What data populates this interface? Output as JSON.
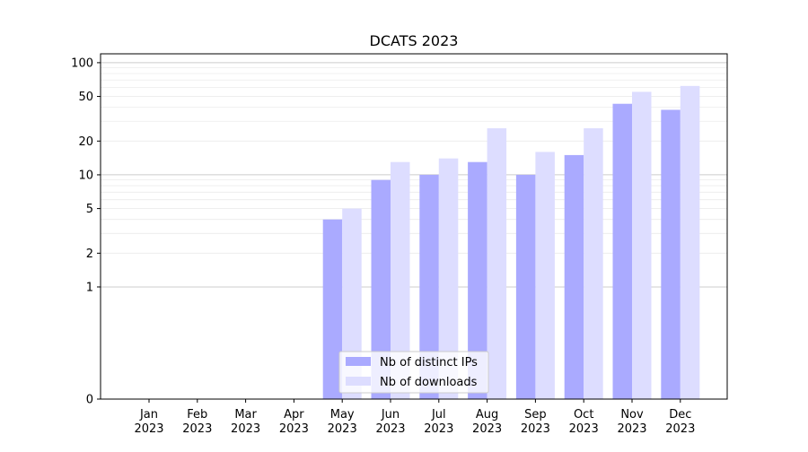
{
  "chart_data": {
    "type": "bar",
    "title": "DCATS 2023",
    "xlabel": "",
    "ylabel": "",
    "categories": [
      [
        "Jan",
        "2023"
      ],
      [
        "Feb",
        "2023"
      ],
      [
        "Mar",
        "2023"
      ],
      [
        "Apr",
        "2023"
      ],
      [
        "May",
        "2023"
      ],
      [
        "Jun",
        "2023"
      ],
      [
        "Jul",
        "2023"
      ],
      [
        "Aug",
        "2023"
      ],
      [
        "Sep",
        "2023"
      ],
      [
        "Oct",
        "2023"
      ],
      [
        "Nov",
        "2023"
      ],
      [
        "Dec",
        "2023"
      ]
    ],
    "series": [
      {
        "name": "Nb of distinct IPs",
        "color": "#aaaaff",
        "values": [
          0,
          0,
          0,
          0,
          4,
          9,
          10,
          13,
          10,
          15,
          43,
          38
        ]
      },
      {
        "name": "Nb of downloads",
        "color": "#ddddff",
        "values": [
          0,
          0,
          0,
          0,
          5,
          13,
          14,
          26,
          16,
          26,
          55,
          62
        ]
      }
    ],
    "y_scale": "symlog",
    "ylim": [
      0,
      120
    ],
    "y_ticks": [
      "0",
      "1",
      "2",
      "5",
      "10",
      "20",
      "50",
      "100"
    ],
    "grid": true,
    "legend_position": "lower-center"
  }
}
